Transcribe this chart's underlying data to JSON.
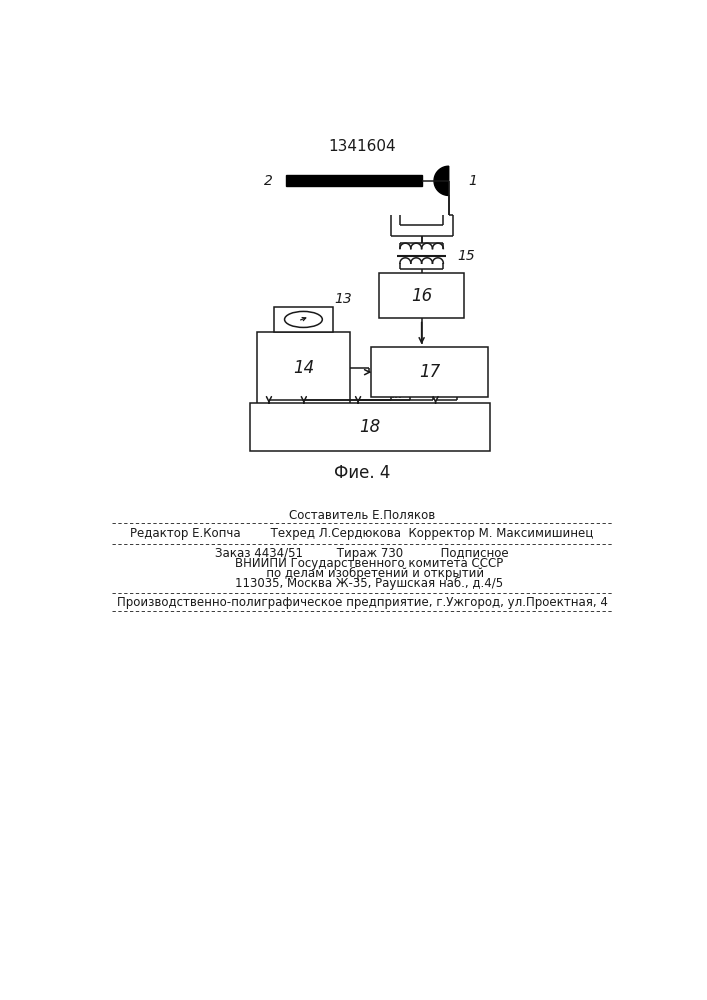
{
  "title": "1341604",
  "fig_label": "Фие. 4",
  "bg_color": "#ffffff",
  "line_color": "#1a1a1a",
  "footer": {
    "line0": "Составитель Е.Поляков",
    "line1": "Редактор Е.Копча        Техред Л.Сердюкова  Корректор М. Максимишинец",
    "line2": "Заказ 4434/51         Тираж 730          Подписное",
    "line3": "    ВНИИПИ Государственного комитета СССР",
    "line4": "       по делам изобретений и открытий",
    "line5": "    113035, Москва Ж-35, Раушская наб., д.4/5",
    "line6": "Производственно-полиграфическое предприятие, г.Ужгород, ул.Проектная, 4"
  }
}
